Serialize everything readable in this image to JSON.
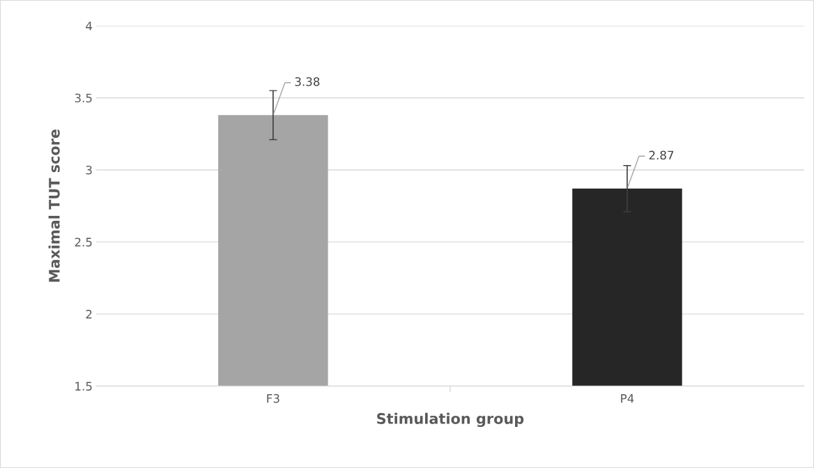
{
  "chart_data": {
    "type": "bar",
    "xlabel": "Stimulation group",
    "ylabel": "Maximal TUT score",
    "categories": [
      "F3",
      "P4"
    ],
    "values": [
      3.38,
      2.87
    ],
    "colors": [
      "#a5a5a5",
      "#262626"
    ],
    "errors": [
      0.17,
      0.16
    ],
    "data_labels": true,
    "ylim": [
      1.5,
      4
    ],
    "yticks": [
      1.5,
      2,
      2.5,
      3,
      3.5,
      4
    ],
    "grid": "y"
  }
}
